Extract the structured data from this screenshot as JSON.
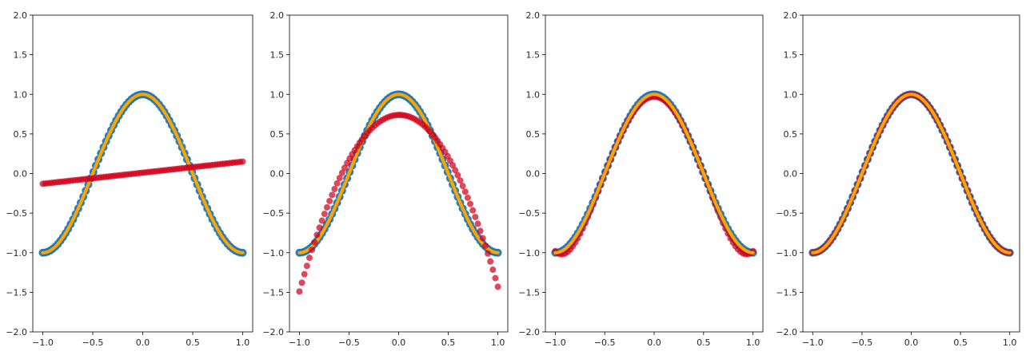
{
  "colors": {
    "target_points": "#1f77b4",
    "target_curve": "#ffa500",
    "fit_points": "#d0021b"
  },
  "chart_data": [
    {
      "type": "scatter",
      "xlim": [
        -1.0,
        1.0
      ],
      "ylim": [
        -2.0,
        2.0
      ],
      "xticks": [
        "−1.0",
        "−0.5",
        "0.0",
        "0.5",
        "1.0"
      ],
      "yticks": [
        "−2.0",
        "−1.5",
        "−1.0",
        "−0.5",
        "0.0",
        "0.5",
        "1.0",
        "1.5",
        "2.0"
      ],
      "grid": false,
      "series": [
        {
          "role": "target_points",
          "fn": "cos(pi*x)",
          "x_range": [
            -1,
            1
          ],
          "points": 80
        },
        {
          "role": "target_curve",
          "fn": "cos(pi*x)",
          "x_range": [
            -1,
            1
          ]
        },
        {
          "role": "fit_points",
          "fn": "linear",
          "coefficients": [
            0.01,
            0.14
          ],
          "x_range": [
            -1,
            1
          ],
          "points": 80
        }
      ]
    },
    {
      "type": "scatter",
      "xlim": [
        -1.0,
        1.0
      ],
      "ylim": [
        -2.0,
        2.0
      ],
      "xticks": [
        "−1.0",
        "−0.5",
        "0.0",
        "0.5",
        "1.0"
      ],
      "yticks": [
        "−2.0",
        "−1.5",
        "−1.0",
        "−0.5",
        "0.0",
        "0.5",
        "1.0",
        "1.5",
        "2.0"
      ],
      "grid": false,
      "series": [
        {
          "role": "target_points",
          "fn": "cos(pi*x)",
          "x_range": [
            -1,
            1
          ],
          "points": 80
        },
        {
          "role": "target_curve",
          "fn": "cos(pi*x)",
          "x_range": [
            -1,
            1
          ]
        },
        {
          "role": "fit_points",
          "fn": "quadratic",
          "coefficients": [
            0.74,
            0.03,
            -2.2
          ],
          "x_range": [
            -1,
            1
          ],
          "points": 80
        }
      ]
    },
    {
      "type": "scatter",
      "xlim": [
        -1.0,
        1.0
      ],
      "ylim": [
        -2.0,
        2.0
      ],
      "xticks": [
        "−1.0",
        "−0.5",
        "0.0",
        "0.5",
        "1.0"
      ],
      "yticks": [
        "−2.0",
        "−1.5",
        "−1.0",
        "−0.5",
        "0.0",
        "0.5",
        "1.0",
        "1.5",
        "2.0"
      ],
      "grid": false,
      "series": [
        {
          "role": "target_points",
          "fn": "cos(pi*x)",
          "x_range": [
            -1,
            1
          ],
          "points": 80
        },
        {
          "role": "fit_points",
          "fn": "polynomial",
          "coefficients": [
            0.97,
            0,
            -4.55,
            0,
            2.6
          ],
          "x_range": [
            -1,
            1
          ],
          "points": 80
        },
        {
          "role": "target_curve",
          "fn": "cos(pi*x)",
          "x_range": [
            -1,
            1
          ]
        }
      ]
    },
    {
      "type": "scatter",
      "xlim": [
        -1.0,
        1.0
      ],
      "ylim": [
        -2.0,
        2.0
      ],
      "xticks": [
        "−1.0",
        "−0.5",
        "0.0",
        "0.5",
        "1.0"
      ],
      "yticks": [
        "−2.0",
        "−1.5",
        "−1.0",
        "−0.5",
        "0.0",
        "0.5",
        "1.0",
        "1.5",
        "2.0"
      ],
      "grid": false,
      "series": [
        {
          "role": "target_points",
          "fn": "cos(pi*x)",
          "x_range": [
            -1,
            1
          ],
          "points": 80
        },
        {
          "role": "fit_points",
          "fn": "cos(pi*x)",
          "x_range": [
            -1,
            1
          ],
          "points": 80
        },
        {
          "role": "target_curve",
          "fn": "cos(pi*x)",
          "x_range": [
            -1,
            1
          ]
        }
      ]
    }
  ]
}
